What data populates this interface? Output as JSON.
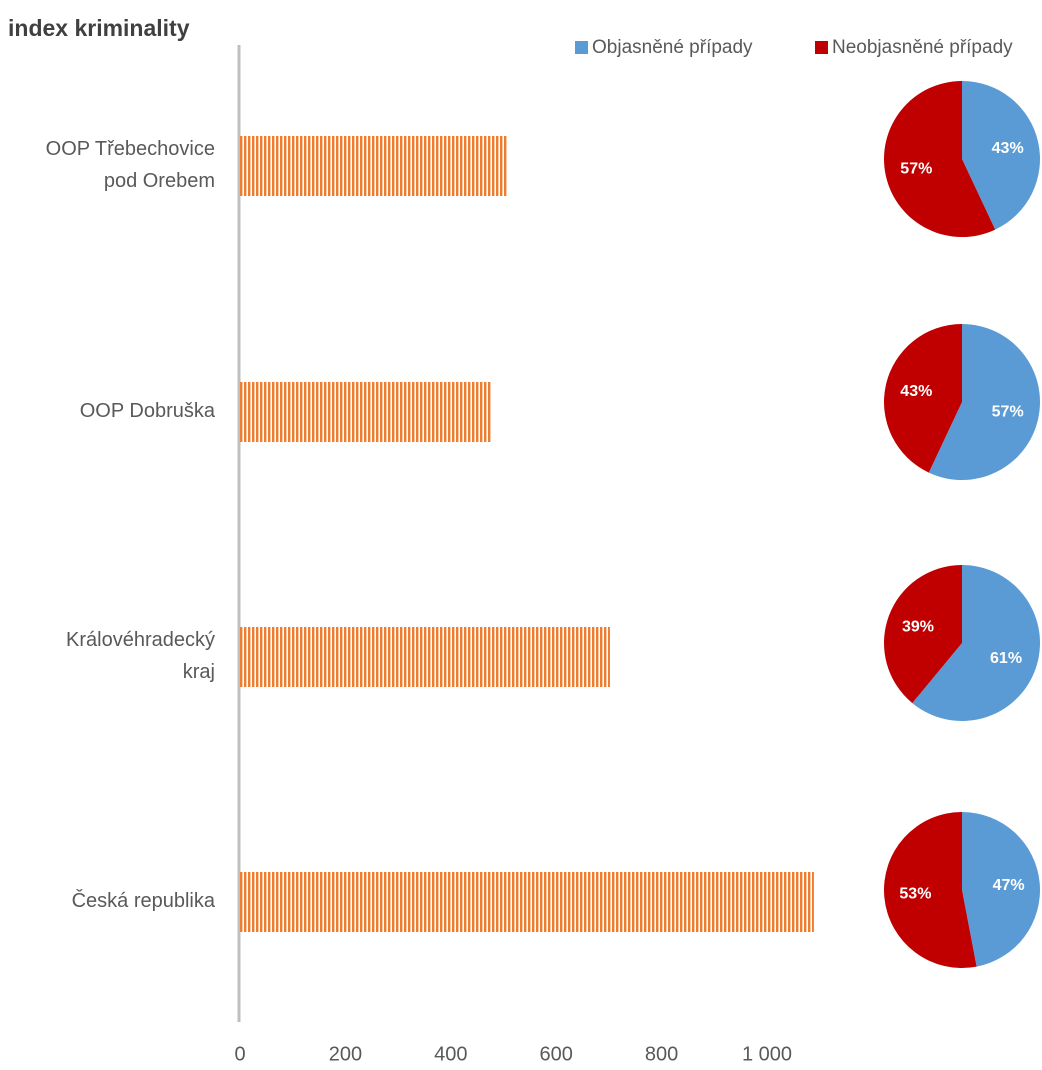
{
  "chart_data": [
    {
      "type": "bar",
      "title": "index kriminality",
      "categories": [
        "OOP Třebechovice\npod Orebem",
        "OOP Dobruška",
        "Královéhradecký\nkraj",
        "Česká republika"
      ],
      "values": [
        508,
        476,
        702,
        1089
      ],
      "color": "#ed7d31",
      "xlim": [
        0,
        1100
      ],
      "xticks": [
        0,
        200,
        400,
        600,
        800,
        {
          "value": 1000,
          "label": "1 000"
        }
      ]
    },
    {
      "type": "pie",
      "series": [
        {
          "name": "Objasněné případy",
          "color": "#5b9bd5",
          "values": [
            43,
            57,
            61,
            47
          ],
          "value_labels": [
            "43%",
            "57%",
            "61%",
            "47%"
          ]
        },
        {
          "name": "Neobjasněné případy",
          "color": "#c00000",
          "values": [
            57,
            43,
            39,
            53
          ],
          "value_labels": [
            "57%",
            "43%",
            "39%",
            "53%"
          ]
        }
      ]
    }
  ]
}
